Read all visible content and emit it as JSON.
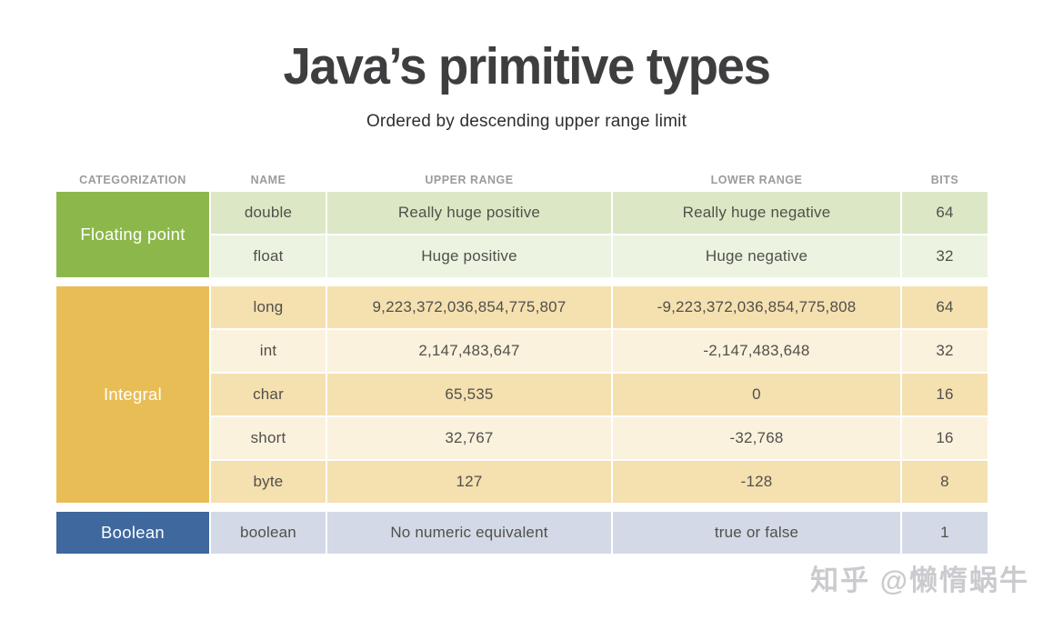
{
  "page": {
    "title": "Java’s primitive types",
    "subtitle": "Ordered by descending upper range limit",
    "watermark": "知乎 @懒惰蜗牛"
  },
  "colors": {
    "floating_point_category": "#8cb84b",
    "floating_point_row_dark": "#dce8c5",
    "floating_point_row_light": "#ecf3e0",
    "integral_category": "#e9bd56",
    "integral_row_dark": "#f5e0af",
    "integral_row_light": "#fbf2de",
    "boolean_category": "#3e689e",
    "boolean_row": "#d4d9e7"
  },
  "table": {
    "headers": {
      "categorization": "CATEGORIZATION",
      "name": "NAME",
      "upper": "UPPER RANGE",
      "lower": "LOWER RANGE",
      "bits": "BITS"
    },
    "groups": [
      {
        "category": "Floating point",
        "color": "#8cb84b",
        "rows": [
          {
            "name": "double",
            "upper": "Really huge positive",
            "lower": "Really huge negative",
            "bits": "64"
          },
          {
            "name": "float",
            "upper": "Huge positive",
            "lower": "Huge negative",
            "bits": "32"
          }
        ]
      },
      {
        "category": "Integral",
        "color": "#e9bd56",
        "rows": [
          {
            "name": "long",
            "upper": "9,223,372,036,854,775,807",
            "lower": "-9,223,372,036,854,775,808",
            "bits": "64"
          },
          {
            "name": "int",
            "upper": "2,147,483,647",
            "lower": "-2,147,483,648",
            "bits": "32"
          },
          {
            "name": "char",
            "upper": "65,535",
            "lower": "0",
            "bits": "16"
          },
          {
            "name": "short",
            "upper": "32,767",
            "lower": "-32,768",
            "bits": "16"
          },
          {
            "name": "byte",
            "upper": "127",
            "lower": "-128",
            "bits": "8"
          }
        ]
      },
      {
        "category": "Boolean",
        "color": "#3e689e",
        "rows": [
          {
            "name": "boolean",
            "upper": "No numeric equivalent",
            "lower": "true or false",
            "bits": "1"
          }
        ]
      }
    ]
  }
}
